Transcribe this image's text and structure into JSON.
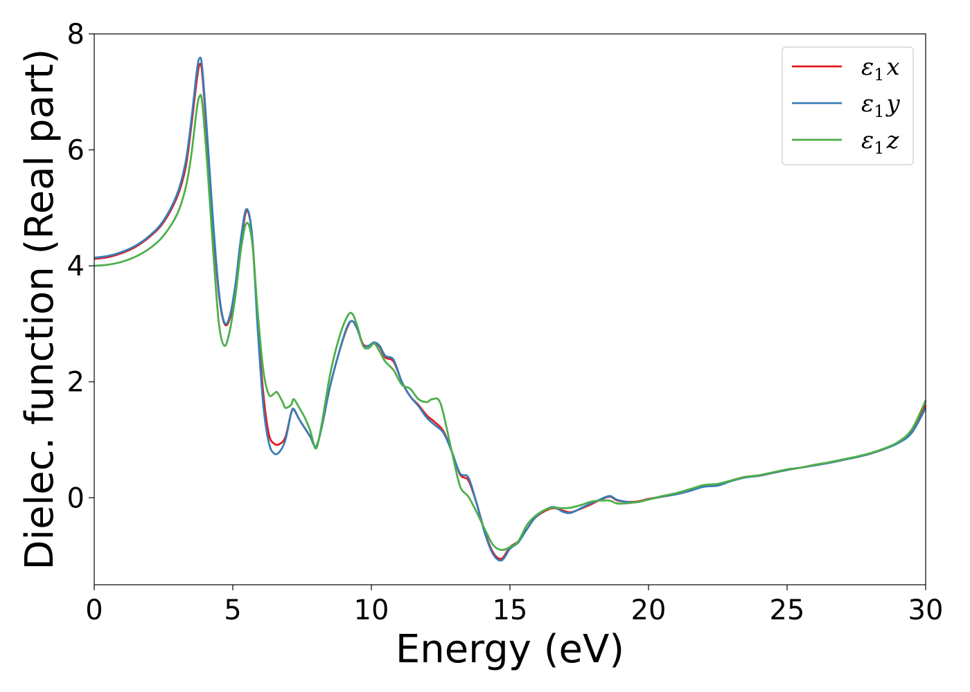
{
  "chart_data": {
    "type": "line",
    "xlabel": "Energy (eV)",
    "ylabel": "Dielec. function (Real part)",
    "xlim": [
      0,
      30
    ],
    "ylim": [
      -1.5,
      8
    ],
    "xticks": [
      0,
      5,
      10,
      15,
      20,
      25,
      30
    ],
    "yticks": [
      0,
      2,
      4,
      6,
      8
    ],
    "grid": false,
    "legend_position": "top-right",
    "series": [
      {
        "name": "ε₁x",
        "legend": {
          "base": "ε",
          "sub": "1",
          "axis": "x"
        },
        "color": "#e41a1c",
        "points": [
          [
            0,
            4.12
          ],
          [
            0.5,
            4.15
          ],
          [
            1,
            4.22
          ],
          [
            1.5,
            4.33
          ],
          [
            2,
            4.5
          ],
          [
            2.5,
            4.75
          ],
          [
            3,
            5.2
          ],
          [
            3.3,
            5.7
          ],
          [
            3.5,
            6.4
          ],
          [
            3.7,
            7.2
          ],
          [
            3.8,
            7.47
          ],
          [
            3.9,
            7.3
          ],
          [
            4.1,
            6.0
          ],
          [
            4.3,
            4.6
          ],
          [
            4.5,
            3.5
          ],
          [
            4.7,
            3.0
          ],
          [
            4.9,
            3.1
          ],
          [
            5.1,
            3.6
          ],
          [
            5.3,
            4.4
          ],
          [
            5.5,
            4.95
          ],
          [
            5.7,
            4.5
          ],
          [
            5.9,
            3.0
          ],
          [
            6.1,
            1.8
          ],
          [
            6.3,
            1.1
          ],
          [
            6.5,
            0.93
          ],
          [
            6.7,
            0.93
          ],
          [
            6.9,
            1.05
          ],
          [
            7.1,
            1.45
          ],
          [
            7.2,
            1.52
          ],
          [
            7.4,
            1.35
          ],
          [
            7.6,
            1.2
          ],
          [
            7.8,
            1.05
          ],
          [
            8.0,
            0.88
          ],
          [
            8.2,
            1.2
          ],
          [
            8.5,
            1.9
          ],
          [
            8.8,
            2.45
          ],
          [
            9.1,
            2.9
          ],
          [
            9.3,
            3.05
          ],
          [
            9.5,
            2.9
          ],
          [
            9.7,
            2.65
          ],
          [
            9.9,
            2.62
          ],
          [
            10.1,
            2.68
          ],
          [
            10.3,
            2.6
          ],
          [
            10.5,
            2.42
          ],
          [
            10.8,
            2.35
          ],
          [
            11.1,
            2.0
          ],
          [
            11.4,
            1.75
          ],
          [
            11.7,
            1.6
          ],
          [
            12.0,
            1.42
          ],
          [
            12.3,
            1.3
          ],
          [
            12.6,
            1.15
          ],
          [
            12.9,
            0.8
          ],
          [
            13.2,
            0.4
          ],
          [
            13.5,
            0.3
          ],
          [
            13.8,
            -0.1
          ],
          [
            14.1,
            -0.6
          ],
          [
            14.4,
            -0.95
          ],
          [
            14.7,
            -1.05
          ],
          [
            15.0,
            -0.85
          ],
          [
            15.3,
            -0.75
          ],
          [
            15.6,
            -0.55
          ],
          [
            15.9,
            -0.35
          ],
          [
            16.3,
            -0.22
          ],
          [
            16.6,
            -0.18
          ],
          [
            16.9,
            -0.22
          ],
          [
            17.2,
            -0.25
          ],
          [
            17.6,
            -0.18
          ],
          [
            17.9,
            -0.12
          ],
          [
            18.2,
            -0.05
          ],
          [
            18.6,
            0.02
          ],
          [
            18.9,
            -0.05
          ],
          [
            19.5,
            -0.07
          ],
          [
            20.0,
            -0.02
          ],
          [
            20.5,
            0.02
          ],
          [
            21.0,
            0.06
          ],
          [
            21.5,
            0.12
          ],
          [
            22.0,
            0.2
          ],
          [
            22.5,
            0.22
          ],
          [
            23.0,
            0.3
          ],
          [
            23.5,
            0.36
          ],
          [
            24.0,
            0.38
          ],
          [
            24.5,
            0.43
          ],
          [
            25.0,
            0.48
          ],
          [
            25.5,
            0.52
          ],
          [
            26.0,
            0.56
          ],
          [
            26.5,
            0.6
          ],
          [
            27.0,
            0.65
          ],
          [
            27.5,
            0.7
          ],
          [
            28.0,
            0.76
          ],
          [
            28.5,
            0.84
          ],
          [
            29.0,
            0.95
          ],
          [
            29.5,
            1.15
          ],
          [
            30.0,
            1.6
          ]
        ]
      },
      {
        "name": "ε₁y",
        "legend": {
          "base": "ε",
          "sub": "1",
          "axis": "y"
        },
        "color": "#377eb8",
        "points": [
          [
            0,
            4.14
          ],
          [
            0.5,
            4.17
          ],
          [
            1,
            4.24
          ],
          [
            1.5,
            4.35
          ],
          [
            2,
            4.52
          ],
          [
            2.5,
            4.78
          ],
          [
            3,
            5.25
          ],
          [
            3.3,
            5.8
          ],
          [
            3.5,
            6.5
          ],
          [
            3.7,
            7.35
          ],
          [
            3.8,
            7.58
          ],
          [
            3.9,
            7.4
          ],
          [
            4.1,
            6.1
          ],
          [
            4.3,
            4.7
          ],
          [
            4.5,
            3.55
          ],
          [
            4.7,
            3.02
          ],
          [
            4.9,
            3.15
          ],
          [
            5.1,
            3.7
          ],
          [
            5.3,
            4.5
          ],
          [
            5.5,
            4.98
          ],
          [
            5.7,
            4.5
          ],
          [
            5.9,
            2.9
          ],
          [
            6.1,
            1.6
          ],
          [
            6.3,
            0.95
          ],
          [
            6.5,
            0.76
          ],
          [
            6.7,
            0.8
          ],
          [
            6.9,
            1.0
          ],
          [
            7.1,
            1.45
          ],
          [
            7.2,
            1.53
          ],
          [
            7.4,
            1.35
          ],
          [
            7.6,
            1.2
          ],
          [
            7.8,
            1.05
          ],
          [
            8.0,
            0.88
          ],
          [
            8.2,
            1.2
          ],
          [
            8.5,
            1.9
          ],
          [
            8.8,
            2.45
          ],
          [
            9.1,
            2.92
          ],
          [
            9.3,
            3.05
          ],
          [
            9.5,
            2.9
          ],
          [
            9.7,
            2.63
          ],
          [
            9.9,
            2.62
          ],
          [
            10.1,
            2.68
          ],
          [
            10.3,
            2.62
          ],
          [
            10.5,
            2.45
          ],
          [
            10.8,
            2.38
          ],
          [
            11.1,
            2.0
          ],
          [
            11.4,
            1.75
          ],
          [
            11.7,
            1.58
          ],
          [
            12.0,
            1.38
          ],
          [
            12.3,
            1.25
          ],
          [
            12.6,
            1.12
          ],
          [
            12.9,
            0.8
          ],
          [
            13.2,
            0.42
          ],
          [
            13.5,
            0.35
          ],
          [
            13.8,
            -0.1
          ],
          [
            14.1,
            -0.62
          ],
          [
            14.4,
            -0.98
          ],
          [
            14.7,
            -1.08
          ],
          [
            15.0,
            -0.88
          ],
          [
            15.3,
            -0.77
          ],
          [
            15.6,
            -0.55
          ],
          [
            15.9,
            -0.35
          ],
          [
            16.3,
            -0.2
          ],
          [
            16.6,
            -0.16
          ],
          [
            16.9,
            -0.24
          ],
          [
            17.2,
            -0.26
          ],
          [
            17.6,
            -0.17
          ],
          [
            17.9,
            -0.1
          ],
          [
            18.2,
            -0.04
          ],
          [
            18.6,
            0.03
          ],
          [
            18.9,
            -0.04
          ],
          [
            19.5,
            -0.08
          ],
          [
            20.0,
            -0.03
          ],
          [
            20.5,
            0.02
          ],
          [
            21.0,
            0.06
          ],
          [
            21.5,
            0.12
          ],
          [
            22.0,
            0.19
          ],
          [
            22.5,
            0.21
          ],
          [
            23.0,
            0.29
          ],
          [
            23.5,
            0.35
          ],
          [
            24.0,
            0.38
          ],
          [
            24.5,
            0.43
          ],
          [
            25.0,
            0.48
          ],
          [
            25.5,
            0.52
          ],
          [
            26.0,
            0.56
          ],
          [
            26.5,
            0.6
          ],
          [
            27.0,
            0.65
          ],
          [
            27.5,
            0.7
          ],
          [
            28.0,
            0.76
          ],
          [
            28.5,
            0.84
          ],
          [
            29.0,
            0.94
          ],
          [
            29.5,
            1.12
          ],
          [
            30.0,
            1.55
          ]
        ]
      },
      {
        "name": "ε₁z",
        "legend": {
          "base": "ε",
          "sub": "1",
          "axis": "z"
        },
        "color": "#4daf4a",
        "points": [
          [
            0,
            4.0
          ],
          [
            0.5,
            4.02
          ],
          [
            1,
            4.07
          ],
          [
            1.5,
            4.16
          ],
          [
            2,
            4.3
          ],
          [
            2.5,
            4.52
          ],
          [
            3,
            4.9
          ],
          [
            3.3,
            5.35
          ],
          [
            3.5,
            5.9
          ],
          [
            3.7,
            6.7
          ],
          [
            3.8,
            6.92
          ],
          [
            3.9,
            6.8
          ],
          [
            4.1,
            5.6
          ],
          [
            4.3,
            4.2
          ],
          [
            4.5,
            3.0
          ],
          [
            4.7,
            2.62
          ],
          [
            4.9,
            2.9
          ],
          [
            5.1,
            3.5
          ],
          [
            5.3,
            4.3
          ],
          [
            5.5,
            4.74
          ],
          [
            5.7,
            4.4
          ],
          [
            5.9,
            3.2
          ],
          [
            6.1,
            2.2
          ],
          [
            6.3,
            1.78
          ],
          [
            6.5,
            1.8
          ],
          [
            6.6,
            1.82
          ],
          [
            6.8,
            1.65
          ],
          [
            6.9,
            1.55
          ],
          [
            7.1,
            1.6
          ],
          [
            7.2,
            1.7
          ],
          [
            7.4,
            1.55
          ],
          [
            7.6,
            1.38
          ],
          [
            7.8,
            1.15
          ],
          [
            8.0,
            0.85
          ],
          [
            8.2,
            1.25
          ],
          [
            8.5,
            2.1
          ],
          [
            8.8,
            2.7
          ],
          [
            9.1,
            3.1
          ],
          [
            9.3,
            3.18
          ],
          [
            9.5,
            2.95
          ],
          [
            9.7,
            2.62
          ],
          [
            9.9,
            2.58
          ],
          [
            10.1,
            2.66
          ],
          [
            10.3,
            2.52
          ],
          [
            10.5,
            2.35
          ],
          [
            10.8,
            2.2
          ],
          [
            11.1,
            1.95
          ],
          [
            11.4,
            1.88
          ],
          [
            11.7,
            1.7
          ],
          [
            12.0,
            1.65
          ],
          [
            12.2,
            1.7
          ],
          [
            12.5,
            1.62
          ],
          [
            12.9,
            0.8
          ],
          [
            13.2,
            0.2
          ],
          [
            13.5,
            0.02
          ],
          [
            13.8,
            -0.25
          ],
          [
            14.1,
            -0.55
          ],
          [
            14.4,
            -0.82
          ],
          [
            14.7,
            -0.9
          ],
          [
            15.0,
            -0.85
          ],
          [
            15.3,
            -0.75
          ],
          [
            15.6,
            -0.48
          ],
          [
            15.9,
            -0.32
          ],
          [
            16.3,
            -0.2
          ],
          [
            16.6,
            -0.17
          ],
          [
            16.9,
            -0.18
          ],
          [
            17.2,
            -0.17
          ],
          [
            17.6,
            -0.12
          ],
          [
            17.9,
            -0.07
          ],
          [
            18.2,
            -0.05
          ],
          [
            18.6,
            -0.05
          ],
          [
            18.9,
            -0.1
          ],
          [
            19.5,
            -0.08
          ],
          [
            20.0,
            -0.03
          ],
          [
            20.5,
            0.03
          ],
          [
            21.0,
            0.08
          ],
          [
            21.5,
            0.15
          ],
          [
            22.0,
            0.22
          ],
          [
            22.5,
            0.24
          ],
          [
            23.0,
            0.3
          ],
          [
            23.5,
            0.36
          ],
          [
            24.0,
            0.39
          ],
          [
            24.5,
            0.44
          ],
          [
            25.0,
            0.49
          ],
          [
            25.5,
            0.52
          ],
          [
            26.0,
            0.57
          ],
          [
            26.5,
            0.61
          ],
          [
            27.0,
            0.66
          ],
          [
            27.5,
            0.71
          ],
          [
            28.0,
            0.77
          ],
          [
            28.5,
            0.85
          ],
          [
            29.0,
            0.96
          ],
          [
            29.5,
            1.18
          ],
          [
            30.0,
            1.68
          ]
        ]
      }
    ]
  }
}
